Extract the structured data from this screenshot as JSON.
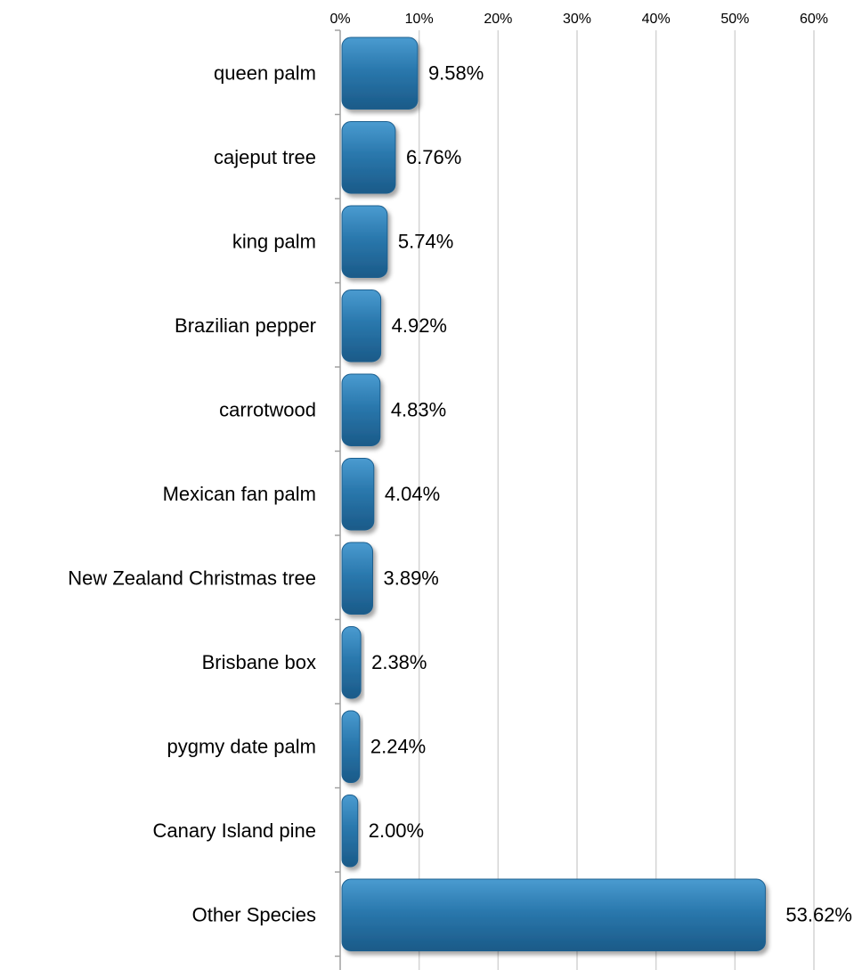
{
  "chart_data": {
    "type": "bar",
    "orientation": "horizontal",
    "categories": [
      "queen palm",
      "cajeput tree",
      "king palm",
      "Brazilian pepper",
      "carrotwood",
      "Mexican fan palm",
      "New Zealand Christmas tree",
      "Brisbane box",
      "pygmy date palm",
      "Canary Island pine",
      "Other Species"
    ],
    "values": [
      9.58,
      6.76,
      5.74,
      4.92,
      4.83,
      4.04,
      3.89,
      2.38,
      2.24,
      2.0,
      53.62
    ],
    "data_labels": [
      "9.58%",
      "6.76%",
      "5.74%",
      "4.92%",
      "4.83%",
      "4.04%",
      "3.89%",
      "2.38%",
      "2.24%",
      "2.00%",
      "53.62%"
    ],
    "ticks": [
      0,
      10,
      20,
      30,
      40,
      50,
      60
    ],
    "tick_labels": [
      "0%",
      "10%",
      "20%",
      "30%",
      "40%",
      "50%",
      "60%"
    ],
    "xlim": [
      0,
      60
    ],
    "axis_position": "top",
    "grid": true,
    "legend": "none",
    "title": "",
    "xlabel": "",
    "ylabel": "",
    "bar_color": "#2a78ad",
    "grid_color": "#d4d4d4"
  }
}
